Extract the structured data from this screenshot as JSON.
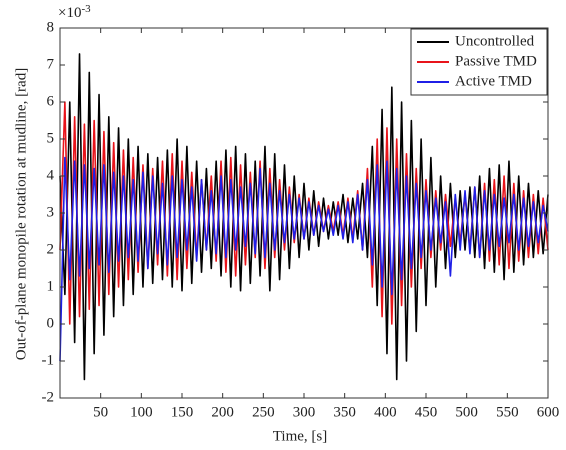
{
  "chart_data": {
    "type": "line",
    "xlabel": "Time, [s]",
    "ylabel": "Out-of-plane monopile rotation at mudline, [rad]",
    "y_exponent_base": "×10",
    "y_exponent_power": "-3",
    "xlim": [
      0,
      600
    ],
    "xticks": [
      50,
      100,
      150,
      200,
      250,
      300,
      350,
      400,
      450,
      500,
      550,
      600
    ],
    "ylim": [
      -2,
      8
    ],
    "yticks": [
      -2,
      -1,
      0,
      1,
      2,
      3,
      4,
      5,
      6,
      7,
      8
    ],
    "grid": false,
    "legend": "upper right",
    "x": [
      0,
      6,
      12,
      18,
      24,
      30,
      36,
      42,
      48,
      54,
      60,
      66,
      72,
      78,
      84,
      90,
      96,
      102,
      108,
      114,
      120,
      126,
      132,
      138,
      144,
      150,
      156,
      162,
      168,
      174,
      180,
      186,
      192,
      198,
      204,
      210,
      216,
      222,
      228,
      234,
      240,
      246,
      252,
      258,
      264,
      270,
      276,
      282,
      288,
      294,
      300,
      306,
      312,
      318,
      324,
      330,
      336,
      342,
      348,
      354,
      360,
      366,
      372,
      378,
      384,
      390,
      396,
      402,
      408,
      414,
      420,
      426,
      432,
      438,
      444,
      450,
      456,
      462,
      468,
      474,
      480,
      486,
      492,
      498,
      504,
      510,
      516,
      522,
      528,
      534,
      540,
      546,
      552,
      558,
      564,
      570,
      576,
      582,
      588,
      594,
      600
    ],
    "series": [
      {
        "name": "Uncontrolled",
        "color": "#000000",
        "values": [
          4.0,
          0.8,
          6.0,
          -0.5,
          7.3,
          -1.5,
          6.8,
          -0.8,
          6.2,
          -0.3,
          5.6,
          0.2,
          5.3,
          0.5,
          5.0,
          0.8,
          4.8,
          1.0,
          4.6,
          1.1,
          4.5,
          1.2,
          4.7,
          1.0,
          5.0,
          0.9,
          4.8,
          1.1,
          4.4,
          1.4,
          4.2,
          1.5,
          4.4,
          1.3,
          4.7,
          1.0,
          4.8,
          0.9,
          4.6,
          1.1,
          4.4,
          1.3,
          4.8,
          0.9,
          4.6,
          1.2,
          4.3,
          1.5,
          4.0,
          1.8,
          3.8,
          2.0,
          3.6,
          2.1,
          3.4,
          2.3,
          3.3,
          2.4,
          3.5,
          2.2,
          3.4,
          2.3,
          3.8,
          1.8,
          4.8,
          0.5,
          5.8,
          -0.8,
          6.4,
          -1.5,
          6.0,
          -1.0,
          5.5,
          -0.2,
          5.0,
          0.5,
          4.5,
          1.0,
          4.0,
          1.5,
          3.8,
          1.8,
          3.6,
          2.0,
          3.7,
          1.8,
          4.0,
          1.5,
          4.2,
          1.4,
          4.3,
          1.2,
          4.4,
          1.4,
          4.0,
          1.6,
          3.8,
          1.8,
          3.6,
          1.9,
          3.5
        ]
      },
      {
        "name": "Passive TMD",
        "color": "#e8141b",
        "values": [
          2.0,
          6.0,
          0.0,
          5.6,
          0.2,
          5.4,
          0.4,
          5.5,
          0.5,
          5.2,
          0.8,
          4.9,
          1.0,
          4.7,
          1.2,
          4.5,
          1.4,
          4.3,
          1.5,
          4.2,
          1.6,
          4.4,
          1.3,
          4.6,
          1.2,
          4.4,
          1.5,
          4.1,
          1.8,
          3.9,
          2.0,
          4.0,
          1.7,
          4.4,
          1.4,
          4.5,
          1.3,
          4.3,
          1.6,
          4.1,
          1.8,
          4.4,
          1.5,
          4.2,
          1.8,
          3.9,
          2.0,
          3.7,
          2.2,
          3.5,
          2.3,
          3.4,
          2.4,
          3.3,
          2.5,
          3.2,
          2.5,
          3.3,
          2.4,
          3.4,
          2.3,
          3.6,
          2.0,
          4.2,
          1.0,
          5.0,
          0.2,
          5.3,
          0.0,
          5.0,
          0.5,
          4.6,
          1.0,
          4.2,
          1.5,
          3.9,
          1.8,
          3.6,
          2.0,
          3.5,
          2.1,
          3.4,
          2.2,
          3.5,
          2.0,
          3.7,
          1.8,
          3.8,
          1.7,
          3.9,
          1.6,
          4.0,
          1.5,
          3.8,
          1.7,
          3.6,
          1.8,
          3.5,
          1.9,
          3.4,
          2.0
        ]
      },
      {
        "name": "Active TMD",
        "color": "#1f1fe6",
        "values": [
          -1.0,
          4.5,
          1.2,
          4.4,
          1.3,
          4.3,
          1.5,
          4.2,
          1.6,
          4.3,
          1.4,
          4.1,
          1.7,
          4.0,
          1.8,
          3.9,
          1.7,
          4.1,
          1.5,
          4.0,
          1.9,
          3.8,
          1.6,
          4.0,
          1.8,
          3.9,
          2.0,
          3.7,
          1.7,
          3.9,
          2.0,
          3.6,
          1.9,
          4.0,
          1.8,
          3.9,
          2.0,
          3.7,
          2.1,
          3.8,
          1.9,
          4.2,
          1.8,
          3.8,
          2.0,
          3.6,
          2.2,
          3.5,
          2.3,
          3.4,
          2.3,
          3.3,
          2.4,
          3.2,
          2.5,
          3.1,
          2.4,
          3.2,
          2.3,
          3.3,
          2.2,
          3.5,
          2.0,
          3.9,
          1.6,
          4.3,
          1.0,
          4.4,
          0.8,
          4.2,
          1.2,
          4.0,
          1.5,
          3.8,
          1.8,
          3.6,
          2.0,
          3.4,
          2.2,
          3.3,
          1.3,
          3.5,
          2.0,
          3.6,
          1.9,
          3.7,
          1.8,
          3.6,
          2.0,
          3.5,
          2.1,
          3.4,
          2.2,
          3.5,
          2.0,
          3.4,
          2.1,
          3.3,
          2.2,
          3.2,
          2.5
        ]
      }
    ]
  }
}
